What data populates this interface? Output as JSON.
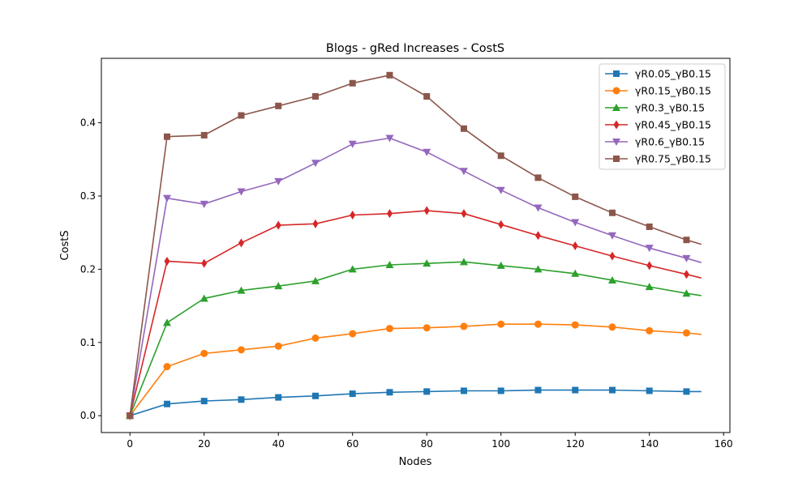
{
  "chart_data": {
    "type": "line",
    "title": "Blogs - gRed Increases - CostS",
    "xlabel": "Nodes",
    "ylabel": "CostS",
    "xlim": [
      -7.7,
      161.7
    ],
    "ylim": [
      -0.023,
      0.488
    ],
    "xticks": [
      0,
      20,
      40,
      60,
      80,
      100,
      120,
      140,
      160
    ],
    "yticks": [
      0.0,
      0.1,
      0.2,
      0.3,
      0.4
    ],
    "xtick_labels": [
      "0",
      "20",
      "40",
      "60",
      "80",
      "100",
      "120",
      "140",
      "160"
    ],
    "ytick_labels": [
      "0.0",
      "0.1",
      "0.2",
      "0.3",
      "0.4"
    ],
    "grid": false,
    "legend_position": "top-right",
    "x": [
      0,
      10,
      20,
      30,
      40,
      50,
      60,
      70,
      80,
      90,
      100,
      110,
      120,
      130,
      140,
      150,
      154
    ],
    "series": [
      {
        "name": "γR0.05_γB0.15",
        "color": "#1f77b4",
        "marker": "square",
        "values": [
          0.0,
          0.016,
          0.02,
          0.022,
          0.025,
          0.027,
          0.03,
          0.032,
          0.033,
          0.034,
          0.034,
          0.035,
          0.035,
          0.035,
          0.034,
          0.033,
          0.033
        ]
      },
      {
        "name": "γR0.15_γB0.15",
        "color": "#ff7f0e",
        "marker": "circle",
        "values": [
          0.0,
          0.067,
          0.085,
          0.09,
          0.095,
          0.106,
          0.112,
          0.119,
          0.12,
          0.122,
          0.125,
          0.125,
          0.124,
          0.121,
          0.116,
          0.113,
          0.111
        ]
      },
      {
        "name": "γR0.3_γB0.15",
        "color": "#2ca02c",
        "marker": "triangle-up",
        "values": [
          0.0,
          0.127,
          0.16,
          0.171,
          0.177,
          0.184,
          0.2,
          0.206,
          0.208,
          0.21,
          0.205,
          0.2,
          0.194,
          0.185,
          0.176,
          0.167,
          0.164
        ]
      },
      {
        "name": "γR0.45_γB0.15",
        "color": "#d62728",
        "marker": "diamond",
        "values": [
          0.0,
          0.211,
          0.208,
          0.236,
          0.26,
          0.262,
          0.274,
          0.276,
          0.28,
          0.276,
          0.261,
          0.246,
          0.232,
          0.218,
          0.205,
          0.193,
          0.188
        ]
      },
      {
        "name": "γR0.6_γB0.15",
        "color": "#9467bd",
        "marker": "triangle-down",
        "values": [
          0.0,
          0.297,
          0.289,
          0.306,
          0.32,
          0.345,
          0.371,
          0.379,
          0.36,
          0.334,
          0.308,
          0.284,
          0.264,
          0.246,
          0.229,
          0.215,
          0.209
        ]
      },
      {
        "name": "γR0.75_γB0.15",
        "color": "#8c564b",
        "marker": "square",
        "values": [
          0.0,
          0.381,
          0.383,
          0.41,
          0.423,
          0.436,
          0.454,
          0.465,
          0.436,
          0.392,
          0.355,
          0.325,
          0.299,
          0.277,
          0.258,
          0.24,
          0.234
        ]
      }
    ]
  }
}
